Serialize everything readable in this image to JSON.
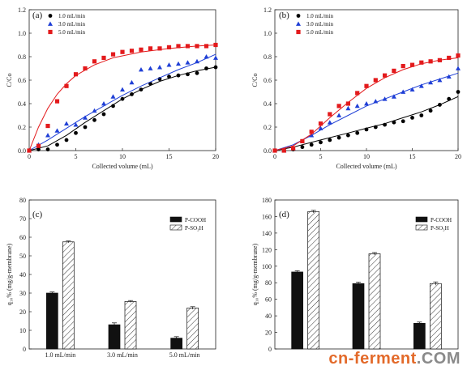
{
  "chart_data": [
    {
      "panel": "(a)",
      "type": "scatter",
      "xlabel": "Collected volume (mL)",
      "ylabel": "C/Co",
      "xlim": [
        0,
        20
      ],
      "ylim": [
        0,
        1.2
      ],
      "xticks": [
        0,
        5,
        10,
        15,
        20
      ],
      "yticks": [
        0.0,
        0.2,
        0.4,
        0.6,
        0.8,
        1.0,
        1.2
      ],
      "legend": "top-left",
      "series": [
        {
          "name": "1.0 mL/min",
          "color": "#000000",
          "marker": "circle",
          "x": [
            0,
            1,
            2,
            3,
            4,
            5,
            6,
            7,
            8,
            9,
            10,
            11,
            12,
            13,
            14,
            15,
            16,
            17,
            18,
            19,
            20
          ],
          "y": [
            0,
            0.01,
            0.01,
            0.05,
            0.09,
            0.15,
            0.2,
            0.26,
            0.31,
            0.38,
            0.44,
            0.48,
            0.52,
            0.57,
            0.61,
            0.63,
            0.64,
            0.65,
            0.66,
            0.7,
            0.71
          ],
          "fit": [
            [
              0,
              0
            ],
            [
              2,
              0.04
            ],
            [
              4,
              0.13
            ],
            [
              6,
              0.24
            ],
            [
              8,
              0.34
            ],
            [
              10,
              0.44
            ],
            [
              12,
              0.52
            ],
            [
              14,
              0.59
            ],
            [
              16,
              0.64
            ],
            [
              18,
              0.68
            ],
            [
              20,
              0.71
            ]
          ]
        },
        {
          "name": "3.0 mL/min",
          "color": "#1f3fd6",
          "marker": "triangle",
          "x": [
            0,
            1,
            2,
            3,
            4,
            5,
            6,
            7,
            8,
            9,
            10,
            11,
            12,
            13,
            14,
            15,
            16,
            17,
            18,
            19,
            20
          ],
          "y": [
            0,
            0.05,
            0.13,
            0.17,
            0.23,
            0.22,
            0.28,
            0.34,
            0.4,
            0.46,
            0.52,
            0.58,
            0.69,
            0.7,
            0.71,
            0.73,
            0.74,
            0.75,
            0.76,
            0.8,
            0.79
          ],
          "fit": [
            [
              0,
              0
            ],
            [
              2,
              0.09
            ],
            [
              4,
              0.19
            ],
            [
              6,
              0.29
            ],
            [
              8,
              0.38
            ],
            [
              10,
              0.47
            ],
            [
              12,
              0.55
            ],
            [
              14,
              0.62
            ],
            [
              16,
              0.69
            ],
            [
              18,
              0.75
            ],
            [
              20,
              0.82
            ]
          ]
        },
        {
          "name": "5.0 mL/min",
          "color": "#e31a1c",
          "marker": "square",
          "x": [
            0,
            1,
            2,
            3,
            4,
            5,
            6,
            7,
            8,
            9,
            10,
            11,
            12,
            13,
            14,
            15,
            16,
            17,
            18,
            19,
            20
          ],
          "y": [
            0,
            0.04,
            0.21,
            0.42,
            0.55,
            0.65,
            0.7,
            0.76,
            0.79,
            0.82,
            0.84,
            0.85,
            0.86,
            0.87,
            0.87,
            0.88,
            0.89,
            0.89,
            0.89,
            0.89,
            0.9
          ],
          "fit": [
            [
              0,
              0
            ],
            [
              1,
              0.2
            ],
            [
              2,
              0.36
            ],
            [
              3,
              0.48
            ],
            [
              4,
              0.57
            ],
            [
              5,
              0.64
            ],
            [
              7,
              0.73
            ],
            [
              9,
              0.79
            ],
            [
              12,
              0.84
            ],
            [
              15,
              0.87
            ],
            [
              18,
              0.89
            ],
            [
              20,
              0.9
            ]
          ]
        }
      ]
    },
    {
      "panel": "(b)",
      "type": "scatter",
      "xlabel": "Collected volume (mL)",
      "ylabel": "C/Co",
      "xlim": [
        0,
        20
      ],
      "ylim": [
        0,
        1.2
      ],
      "xticks": [
        0,
        5,
        10,
        15,
        20
      ],
      "yticks": [
        0.0,
        0.2,
        0.4,
        0.6,
        0.8,
        1.0,
        1.2
      ],
      "legend": "top-left",
      "series": [
        {
          "name": "1.0 mL/min",
          "color": "#000000",
          "marker": "circle",
          "x": [
            0,
            1,
            2,
            3,
            4,
            5,
            6,
            7,
            8,
            9,
            10,
            11,
            12,
            13,
            14,
            15,
            16,
            17,
            18,
            19,
            20
          ],
          "y": [
            0,
            0.0,
            0.01,
            0.03,
            0.05,
            0.07,
            0.09,
            0.11,
            0.13,
            0.15,
            0.18,
            0.2,
            0.22,
            0.24,
            0.25,
            0.28,
            0.3,
            0.34,
            0.39,
            0.44,
            0.5
          ],
          "fit": [
            [
              0,
              0
            ],
            [
              2,
              0.03
            ],
            [
              5,
              0.09
            ],
            [
              8,
              0.15
            ],
            [
              10,
              0.19
            ],
            [
              12,
              0.23
            ],
            [
              14,
              0.28
            ],
            [
              16,
              0.33
            ],
            [
              18,
              0.39
            ],
            [
              20,
              0.46
            ]
          ]
        },
        {
          "name": "3.0 mL/min",
          "color": "#1f3fd6",
          "marker": "triangle",
          "x": [
            0,
            1,
            2,
            3,
            4,
            5,
            6,
            7,
            8,
            9,
            10,
            11,
            12,
            13,
            14,
            15,
            16,
            17,
            18,
            19,
            20
          ],
          "y": [
            0,
            0.0,
            0.02,
            0.08,
            0.13,
            0.19,
            0.24,
            0.3,
            0.36,
            0.38,
            0.4,
            0.42,
            0.44,
            0.46,
            0.5,
            0.52,
            0.55,
            0.58,
            0.6,
            0.63,
            0.7
          ],
          "fit": [
            [
              0,
              0
            ],
            [
              2,
              0.05
            ],
            [
              4,
              0.13
            ],
            [
              6,
              0.22
            ],
            [
              8,
              0.3
            ],
            [
              10,
              0.38
            ],
            [
              12,
              0.44
            ],
            [
              14,
              0.5
            ],
            [
              16,
              0.56
            ],
            [
              18,
              0.61
            ],
            [
              20,
              0.66
            ]
          ]
        },
        {
          "name": "5.0 mL/min",
          "color": "#e31a1c",
          "marker": "square",
          "x": [
            0,
            1,
            2,
            3,
            4,
            5,
            6,
            7,
            8,
            9,
            10,
            11,
            12,
            13,
            14,
            15,
            16,
            17,
            18,
            19,
            20
          ],
          "y": [
            0,
            0.0,
            0.02,
            0.08,
            0.16,
            0.23,
            0.31,
            0.38,
            0.4,
            0.49,
            0.55,
            0.6,
            0.64,
            0.68,
            0.72,
            0.73,
            0.75,
            0.76,
            0.77,
            0.79,
            0.81
          ],
          "fit": [
            [
              0,
              0
            ],
            [
              2,
              0.04
            ],
            [
              4,
              0.14
            ],
            [
              6,
              0.28
            ],
            [
              8,
              0.41
            ],
            [
              10,
              0.53
            ],
            [
              12,
              0.62
            ],
            [
              14,
              0.69
            ],
            [
              16,
              0.74
            ],
            [
              18,
              0.77
            ],
            [
              20,
              0.79
            ]
          ]
        }
      ]
    },
    {
      "panel": "(c)",
      "type": "bar",
      "ylabel": "q₁₀% (mg/g-membrane)",
      "ylim": [
        0,
        80
      ],
      "yticks": [
        0,
        10,
        20,
        30,
        40,
        50,
        60,
        70,
        80
      ],
      "categories": [
        "1.0 mL/min",
        "3.0 mL/min",
        "5.0 mL/min"
      ],
      "legend": "top-right",
      "series": [
        {
          "name": "P-COOH",
          "fill": "solid",
          "values": [
            30,
            13,
            5.8
          ],
          "errors": [
            0.6,
            1.0,
            0.8
          ]
        },
        {
          "name": "P-SO₃H",
          "fill": "hatched",
          "values": [
            57.5,
            25.5,
            22
          ],
          "errors": [
            0.5,
            0.5,
            0.7
          ]
        }
      ]
    },
    {
      "panel": "(d)",
      "type": "bar",
      "ylabel": "q₁₀% (mg/g-membrane)",
      "ylim": [
        0,
        180
      ],
      "yticks": [
        0,
        20,
        40,
        60,
        80,
        100,
        120,
        140,
        160,
        180
      ],
      "categories": [
        "",
        "",
        ""
      ],
      "legend": "top-right",
      "series": [
        {
          "name": "P-COOH",
          "fill": "solid",
          "values": [
            93,
            79,
            31
          ],
          "errors": [
            1.5,
            1.8,
            1.5
          ]
        },
        {
          "name": "P-SO₃H",
          "fill": "hatched",
          "values": [
            166,
            115,
            79
          ],
          "errors": [
            1.5,
            1.5,
            2.0
          ]
        }
      ]
    }
  ],
  "watermark": {
    "part1": "cn-ferment",
    "part2": ".COM"
  }
}
